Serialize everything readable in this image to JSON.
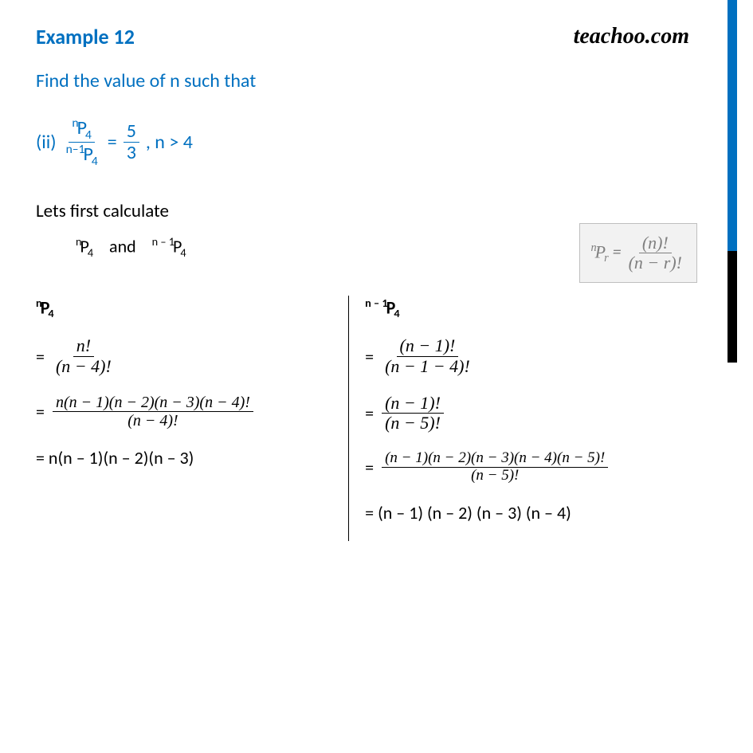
{
  "header": {
    "example_label": "Example 12",
    "logo": "teachoo.com"
  },
  "question": "Find the value of n such that",
  "part": {
    "label": "(ii)",
    "lhs_num_pre": "n",
    "lhs_num_p": "P",
    "lhs_num_sub": "4",
    "lhs_den_pre": "n–1",
    "lhs_den_p": "P",
    "lhs_den_sub": "4",
    "eq": "=",
    "rhs_num": "5",
    "rhs_den": "3",
    "cond": ", n > 4"
  },
  "formula_box": {
    "pre": "n",
    "p": "P",
    "sub": "r",
    "eq": " = ",
    "num": "(n)!",
    "den": "(n − r)!"
  },
  "intro": {
    "line1": "Lets first calculate",
    "p1_pre": "n",
    "p1_p": "P",
    "p1_sub": "4",
    "and": "   and   ",
    "p2_pre": "n – 1",
    "p2_p": "P",
    "p2_sub": "4"
  },
  "left": {
    "header_pre": "n",
    "header_p": "P",
    "header_sub": "4",
    "s1_eq": "=",
    "s1_num": "n!",
    "s1_den": "(n − 4)!",
    "s2_eq": "=",
    "s2_num": "n(n − 1)(n − 2)(n − 3)(n − 4)!",
    "s2_den": "(n − 4)!",
    "s3": "= n(n – 1)(n – 2)(n – 3)"
  },
  "right": {
    "header_pre": "n – 1",
    "header_p": "P",
    "header_sub": "4",
    "s1_eq": "=",
    "s1_num": "(n − 1)!",
    "s1_den": "(n − 1 − 4)!",
    "s2_eq": "=",
    "s2_num": "(n − 1)!",
    "s2_den": "(n − 5)!",
    "s3_eq": "=",
    "s3_num": "(n − 1)(n − 2)(n − 3)(n − 4)(n − 5)!",
    "s3_den": "(n − 5)!",
    "s4": "= (n – 1) (n – 2) (n – 3) (n – 4)"
  },
  "colors": {
    "accent_blue": "#0070c0",
    "text_black": "#000000",
    "box_bg": "#f2f2f2",
    "box_border": "#bfbfbf",
    "box_text": "#808080"
  }
}
